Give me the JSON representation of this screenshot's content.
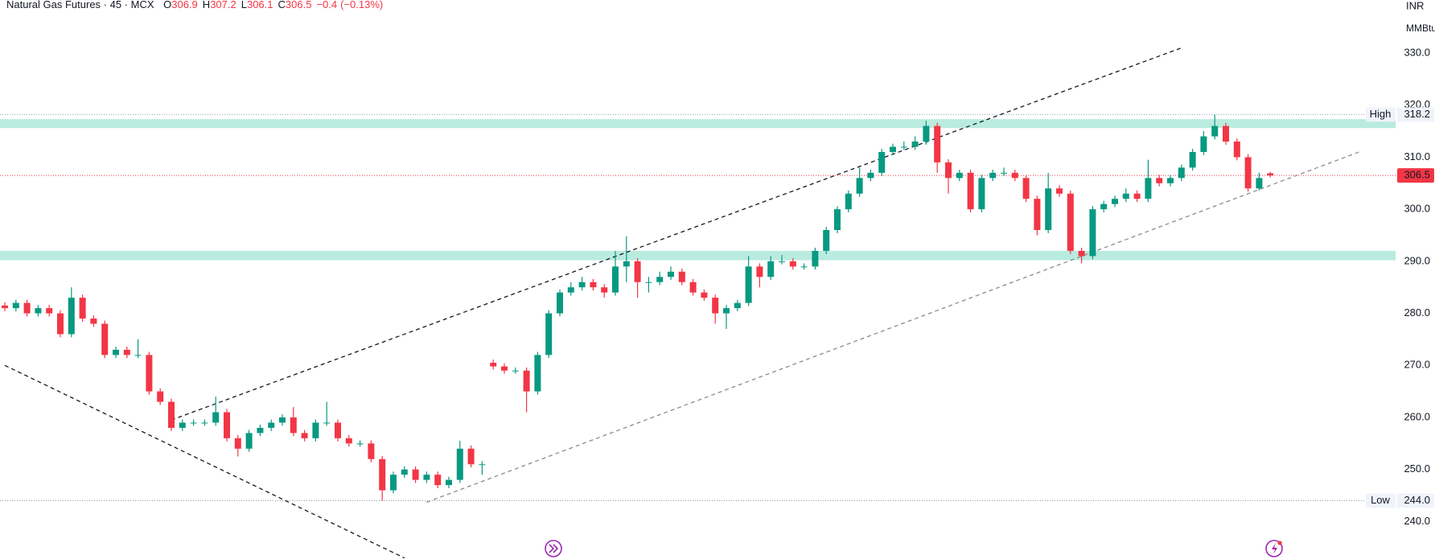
{
  "chart_data": {
    "type": "candlestick",
    "title": "Natural Gas Futures · 45 · MCX",
    "ohlc_legend": [
      {
        "name": "O",
        "value": 306.9
      },
      {
        "name": "H",
        "value": 307.2
      },
      {
        "name": "L",
        "value": 306.1
      },
      {
        "name": "C",
        "value": 306.5
      }
    ],
    "change": {
      "value": -0.4,
      "label": "−0.4"
    },
    "change_pct": {
      "value": -0.13,
      "label": "(−0.13%)"
    },
    "currency": "INR",
    "unit": "MMBtu",
    "ylim": [
      232.8,
      340.2
    ],
    "yticks": [
      {
        "value": 240,
        "label": "240.0"
      },
      {
        "value": 250,
        "label": "250.0"
      },
      {
        "value": 260,
        "label": "260.0"
      },
      {
        "value": 270,
        "label": "270.0"
      },
      {
        "value": 280,
        "label": "280.0"
      },
      {
        "value": 290,
        "label": "290.0"
      },
      {
        "value": 300,
        "label": "300.0"
      },
      {
        "value": 310,
        "label": "310.0"
      },
      {
        "value": 320,
        "label": "320.0"
      },
      {
        "value": 330,
        "label": "330.0"
      }
    ],
    "up_color": "#089981",
    "down_color": "#f23645",
    "open": [
      281.5,
      281,
      282,
      280,
      281,
      280,
      276,
      283,
      279,
      278,
      272,
      273,
      272,
      272,
      265,
      263,
      258,
      259,
      259,
      259,
      261,
      256,
      254,
      257,
      258,
      259,
      260,
      257,
      256,
      259,
      259,
      256,
      255,
      255,
      252,
      246,
      249,
      250,
      248,
      249,
      247,
      248,
      254,
      251,
      270.5,
      269.8,
      269,
      269,
      265,
      272,
      280,
      284,
      285,
      286,
      285,
      284,
      289,
      290,
      286,
      286,
      287,
      288,
      286,
      284,
      283,
      280,
      281,
      282,
      289,
      287,
      290,
      290,
      289,
      289,
      292,
      296,
      300,
      303,
      306,
      307,
      311,
      312,
      312,
      313,
      316,
      309,
      306,
      307,
      300,
      306,
      307,
      307,
      306,
      302,
      296,
      304,
      303,
      292,
      291,
      300,
      301,
      302,
      303,
      302,
      306,
      305,
      306,
      308,
      311,
      314,
      316,
      313,
      310,
      304,
      306.9
    ],
    "high": [
      282.1,
      282.6,
      282.6,
      281.6,
      281.6,
      280.6,
      285,
      283.6,
      279.6,
      278.6,
      273.6,
      273.6,
      275,
      272.6,
      265.6,
      263.6,
      259.6,
      259.6,
      259.6,
      264,
      261.6,
      256.6,
      257.6,
      258.6,
      259.6,
      260.6,
      262,
      257.6,
      259.6,
      263,
      259.6,
      256.6,
      255.6,
      255.6,
      252.6,
      249.6,
      250.6,
      250.6,
      249.6,
      249.6,
      248.6,
      255.5,
      254.6,
      251.6,
      271.1,
      270.4,
      269.6,
      269.6,
      272.6,
      280.6,
      284.6,
      286,
      287,
      286.6,
      285.6,
      292,
      294.8,
      290.6,
      287,
      288,
      289,
      288.6,
      286.6,
      284.6,
      283.6,
      281.6,
      282.6,
      291,
      289.6,
      291,
      291.2,
      290.6,
      289.6,
      292.6,
      296.6,
      300.6,
      303.6,
      308,
      307.6,
      311.6,
      312.6,
      313,
      314,
      317,
      316.6,
      309.6,
      307.6,
      307.6,
      306.6,
      307.6,
      308,
      307.6,
      306.6,
      302.6,
      307,
      304.6,
      303.6,
      292.6,
      300.6,
      301.6,
      302.6,
      304,
      303.6,
      309.5,
      306.6,
      306.6,
      308.6,
      311.6,
      315,
      318.2,
      316.6,
      313.6,
      310.6,
      307,
      307.2
    ],
    "low": [
      280.4,
      280.4,
      279.4,
      279.4,
      279.4,
      275.4,
      275.4,
      278.4,
      277.4,
      271.4,
      271.4,
      271.4,
      271.4,
      264.4,
      262.4,
      257.4,
      257.4,
      258.4,
      258.4,
      258.4,
      255.4,
      252.5,
      253.4,
      256.4,
      257.4,
      258.4,
      256.4,
      255.4,
      255.4,
      258.4,
      255.4,
      254.4,
      254.4,
      251.4,
      244,
      245.4,
      248.4,
      247.4,
      247.4,
      246.4,
      246.4,
      247.4,
      250.4,
      249,
      269.2,
      268.4,
      268.4,
      261,
      264.4,
      271.4,
      279.4,
      283.4,
      284.4,
      284.4,
      283,
      283.4,
      286,
      283,
      284,
      285.4,
      286.4,
      285.4,
      283.4,
      282.4,
      278,
      277,
      280.4,
      281.4,
      285,
      286.4,
      289.4,
      288.4,
      288.4,
      288.4,
      291.4,
      295.4,
      299.4,
      302.4,
      305.4,
      306.4,
      310.4,
      311.4,
      311.4,
      312.4,
      307,
      303,
      305.4,
      299.4,
      299.4,
      305.4,
      306.4,
      305.4,
      301.4,
      295,
      295.4,
      302.4,
      291.4,
      289.6,
      290.4,
      299.4,
      300.4,
      301.4,
      301.4,
      301.4,
      304.4,
      304.4,
      305.4,
      307.4,
      310.4,
      313.4,
      312.4,
      309.4,
      303.4,
      303.6,
      306.1
    ],
    "close": [
      281,
      282,
      280,
      281,
      280,
      276,
      283,
      279,
      278,
      272,
      273,
      272,
      272,
      265,
      263,
      258,
      259,
      259,
      259,
      261,
      256,
      254,
      257,
      258,
      259,
      260,
      257,
      256,
      259,
      259,
      256,
      255,
      255,
      252,
      246,
      249,
      250,
      248,
      249,
      247,
      248,
      254,
      251,
      251,
      269.8,
      269,
      269,
      265,
      272,
      280,
      284,
      285,
      286,
      285,
      284,
      289,
      290,
      286,
      286,
      287,
      288,
      286,
      284,
      283,
      280,
      281,
      282,
      289,
      287,
      290,
      290,
      289,
      289,
      292,
      296,
      300,
      303,
      306,
      307,
      311,
      312,
      312,
      313,
      316,
      309,
      306,
      307,
      300,
      306,
      307,
      307,
      306,
      302,
      296,
      304,
      303,
      292,
      291,
      300,
      301,
      302,
      303,
      302,
      306,
      305,
      306,
      308,
      311,
      314,
      316,
      313,
      310,
      304,
      306,
      306.5
    ],
    "high_level": {
      "label": "High",
      "value": 318.2
    },
    "low_level": {
      "label": "Low",
      "value": 244,
      "value_label": "244.0"
    },
    "last_price": 306.5,
    "zones": [
      {
        "low": 315.6,
        "high": 317.3,
        "color": "#b9ebdf"
      },
      {
        "low": 290.2,
        "high": 292.0,
        "color": "#b9ebdf"
      }
    ],
    "trend_lines": [
      {
        "from": [
          15,
          259.5
        ],
        "to": [
          106,
          331
        ],
        "color": "#131722"
      },
      {
        "from": [
          38,
          243.7
        ],
        "to": [
          122,
          311
        ],
        "color": "#8c8c8c"
      },
      {
        "from": [
          0,
          270
        ],
        "to": [
          36,
          233
        ],
        "color": "#131722"
      }
    ]
  }
}
